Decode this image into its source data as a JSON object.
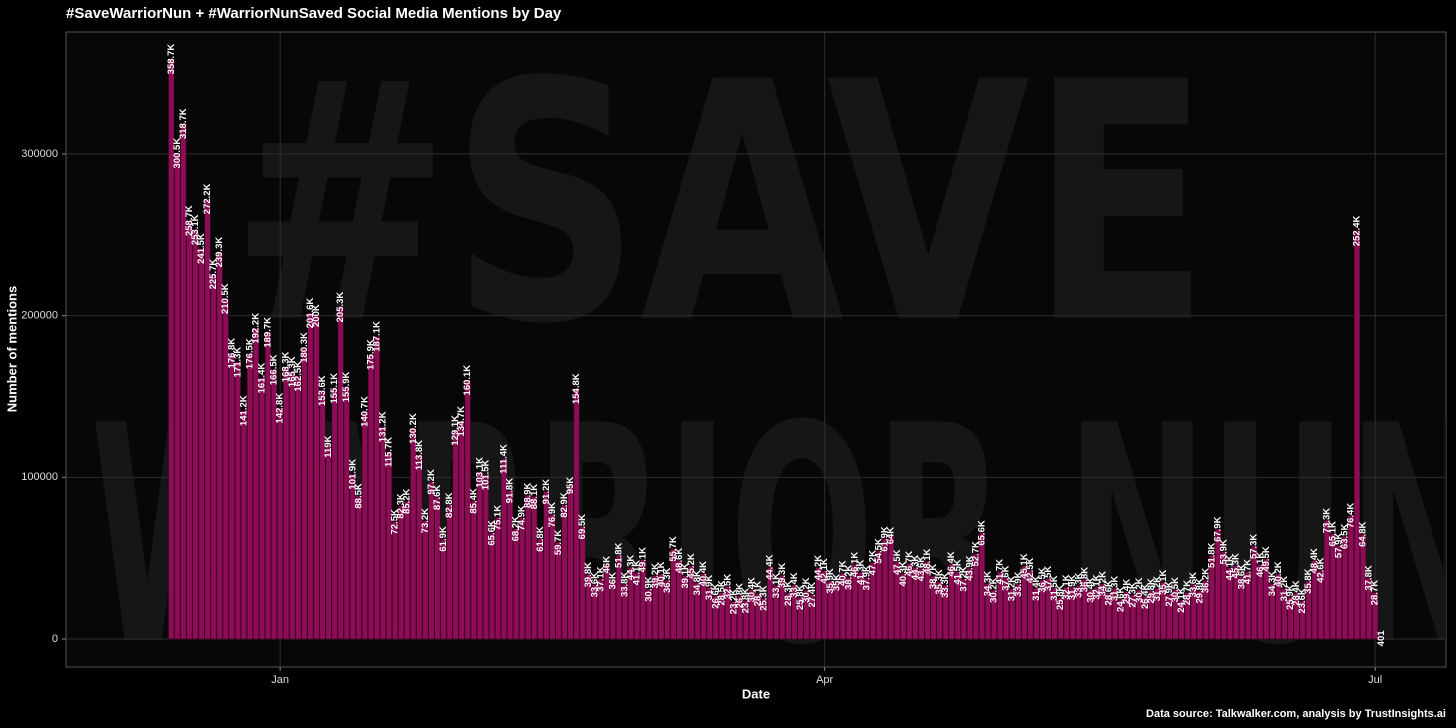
{
  "chart_data": {
    "type": "bar",
    "title": "#SaveWarriorNun + #WarriorNunSaved Social Media Mentions by Day",
    "x_label": "Date",
    "y_label": "Number of mentions",
    "source": "Data source: Talkwalker.com, analysis by TrustInsights.ai",
    "background_text": [
      "#SAVE",
      "WARRIOR NUN"
    ],
    "color": "#8c0d55",
    "grid": true,
    "xlim": [
      -35.4,
      192.7
    ],
    "ylim": [
      -17300,
      375400
    ],
    "xticks": [
      {
        "value": 0,
        "label": "Jan"
      },
      {
        "value": 90,
        "label": "Apr"
      },
      {
        "value": 181,
        "label": "Jul"
      }
    ],
    "yticks": [
      0,
      100000,
      200000,
      300000
    ],
    "x": [
      -18,
      -17,
      -16,
      -15,
      -14,
      -13,
      -12,
      -11,
      -10,
      -9,
      -8,
      -7,
      -6,
      -5,
      -4,
      -3,
      -2,
      -1,
      0,
      1,
      2,
      3,
      4,
      5,
      6,
      7,
      8,
      9,
      10,
      11,
      12,
      13,
      14,
      15,
      16,
      17,
      18,
      19,
      20,
      21,
      22,
      23,
      24,
      25,
      26,
      27,
      28,
      29,
      30,
      31,
      32,
      33,
      34,
      35,
      36,
      37,
      38,
      39,
      40,
      41,
      42,
      43,
      44,
      45,
      46,
      47,
      48,
      49,
      50,
      51,
      52,
      53,
      54,
      55,
      56,
      57,
      58,
      59,
      60,
      61,
      62,
      63,
      64,
      65,
      66,
      67,
      68,
      69,
      70,
      71,
      72,
      73,
      74,
      75,
      76,
      77,
      78,
      79,
      80,
      81,
      82,
      83,
      84,
      85,
      86,
      87,
      88,
      89,
      90,
      91,
      92,
      93,
      94,
      95,
      96,
      97,
      98,
      99,
      100,
      101,
      102,
      103,
      104,
      105,
      106,
      107,
      108,
      109,
      110,
      111,
      112,
      113,
      114,
      115,
      116,
      117,
      118,
      119,
      120,
      121,
      122,
      123,
      124,
      125,
      126,
      127,
      128,
      129,
      130,
      131,
      132,
      133,
      134,
      135,
      136,
      137,
      138,
      139,
      140,
      141,
      142,
      143,
      144,
      145,
      146,
      147,
      148,
      149,
      150,
      151,
      152,
      153,
      154,
      155,
      156,
      157,
      158,
      159,
      160,
      161,
      162,
      163,
      164,
      165,
      166,
      167,
      168,
      169,
      170,
      171,
      172,
      173,
      174,
      175,
      176,
      177,
      178,
      179,
      180,
      181,
      182
    ],
    "values": [
      358700,
      300500,
      318700,
      258700,
      253100,
      241500,
      272200,
      225700,
      239300,
      210500,
      176800,
      171300,
      141200,
      176500,
      192200,
      161400,
      189700,
      166500,
      142800,
      168300,
      165300,
      162500,
      180300,
      201600,
      200000,
      153600,
      119000,
      155100,
      205300,
      155900,
      101900,
      88500,
      140700,
      175900,
      187100,
      131200,
      115700,
      72500,
      82300,
      85200,
      130200,
      113800,
      73200,
      97200,
      87600,
      61900,
      82800,
      129100,
      134700,
      160100,
      85400,
      103100,
      101500,
      65600,
      75100,
      111400,
      91800,
      68200,
      74900,
      88900,
      88100,
      61800,
      91200,
      76900,
      59700,
      82900,
      95000,
      154800,
      69500,
      39800,
      33600,
      37100,
      46000,
      36000,
      51800,
      33800,
      44300,
      41100,
      49100,
      30900,
      39200,
      40100,
      36300,
      55700,
      48600,
      39100,
      45200,
      34800,
      40400,
      31900,
      26600,
      28500,
      32500,
      23200,
      26800,
      23800,
      30400,
      28100,
      25300,
      44400,
      33100,
      39300,
      28300,
      33400,
      25800,
      30200,
      27400,
      44200,
      42100,
      35900,
      35000,
      40700,
      38200,
      46100,
      41300,
      37900,
      47200,
      54500,
      61900,
      64000,
      47500,
      40300,
      46700,
      44300,
      43600,
      48100,
      38700,
      35300,
      33300,
      46400,
      41500,
      37200,
      43900,
      52700,
      65600,
      34300,
      30200,
      41700,
      37600,
      31200,
      33900,
      45100,
      42500,
      31400,
      36500,
      37500,
      31500,
      25800,
      32100,
      31900,
      33300,
      36800,
      30400,
      32100,
      34200,
      28600,
      31300,
      24600,
      29400,
      27300,
      30200,
      26400,
      29800,
      31200,
      35100,
      27900,
      30500,
      24100,
      28700,
      33600,
      29800,
      36200,
      51800,
      67900,
      53900,
      44100,
      45300,
      38600,
      41700,
      57300,
      46100,
      49500,
      34300,
      40200,
      31200,
      25900,
      28400,
      23600,
      35800,
      48400,
      42600,
      73300,
      65100,
      57900,
      63500,
      76400,
      252400,
      64800,
      37800,
      28700,
      401
    ],
    "value_labels": [
      "358.7K",
      "300.5K",
      "318.7K",
      "258.7K",
      "253.1K",
      "241.5K",
      "272.2K",
      "225.7K",
      "239.3K",
      "210.5K",
      "176.8K",
      "171.3K",
      "141.2K",
      "176.5K",
      "192.2K",
      "161.4K",
      "189.7K",
      "166.5K",
      "142.8K",
      "168.3K",
      "165.3K",
      "162.5K",
      "180.3K",
      "201.6K",
      "200K",
      "153.6K",
      "119K",
      "155.1K",
      "205.3K",
      "155.9K",
      "101.9K",
      "88.5K",
      "140.7K",
      "175.9K",
      "187.1K",
      "131.2K",
      "115.7K",
      "72.5K",
      "82.3K",
      "85.2K",
      "130.2K",
      "113.8K",
      "73.2K",
      "97.2K",
      "87.6K",
      "61.9K",
      "82.8K",
      "129.1K",
      "134.7K",
      "160.1K",
      "85.4K",
      "103.1K",
      "101.5K",
      "65.6K",
      "75.1K",
      "111.4K",
      "91.8K",
      "68.2K",
      "74.9K",
      "88.9K",
      "88.1K",
      "61.8K",
      "91.2K",
      "76.9K",
      "59.7K",
      "82.9K",
      "95K",
      "154.8K",
      "69.5K",
      "39.8K",
      "33.6K",
      "37.1K",
      "46K",
      "36K",
      "51.8K",
      "33.8K",
      "44.3K",
      "41.1K",
      "49.1K",
      "30.9K",
      "39.2K",
      "40.1K",
      "36.3K",
      "55.7K",
      "48.6K",
      "39.1K",
      "45.2K",
      "34.8K",
      "40.4K",
      "31.9K",
      "26.6K",
      "28.5K",
      "32.5K",
      "23.2K",
      "26.8K",
      "23.8K",
      "30.4K",
      "28.1K",
      "25.3K",
      "44.4K",
      "33.1K",
      "39.3K",
      "28.3K",
      "33.4K",
      "25.8K",
      "30.2K",
      "27.4K",
      "44.2K",
      "42.1K",
      "35.9K",
      "35K",
      "40.7K",
      "38.2K",
      "46.1K",
      "41.3K",
      "37.9K",
      "47.2K",
      "54.5K",
      "61.9K",
      "64K",
      "47.5K",
      "40.3K",
      "46.7K",
      "44.3K",
      "43.6K",
      "48.1K",
      "38.7K",
      "35.3K",
      "33.3K",
      "46.4K",
      "41.5K",
      "37.2K",
      "43.9K",
      "52.7K",
      "65.6K",
      "34.3K",
      "30.2K",
      "41.7K",
      "37.6K",
      "31.2K",
      "33.9K",
      "45.1K",
      "42.5K",
      "31.4K",
      "36.5K",
      "37.5K",
      "31.5K",
      "25.8K",
      "32.1K",
      "31.9K",
      "33.3K",
      "36.8K",
      "30.4K",
      "32.1K",
      "34.2K",
      "28.6K",
      "31.3K",
      "24.6K",
      "29.4K",
      "27.3K",
      "30.2K",
      "26.4K",
      "29.8K",
      "31.2K",
      "35.1K",
      "27.9K",
      "30.5K",
      "24.1K",
      "28.7K",
      "33.6K",
      "29.8K",
      "36.2K",
      "51.8K",
      "67.9K",
      "53.9K",
      "44.1K",
      "45.3K",
      "38.6K",
      "41.7K",
      "57.3K",
      "46.1K",
      "49.5K",
      "34.3K",
      "40.2K",
      "31.2K",
      "25.9K",
      "28.4K",
      "23.6K",
      "35.8K",
      "48.4K",
      "42.6K",
      "73.3K",
      "65.1K",
      "57.9K",
      "63.5K",
      "76.4K",
      "252.4K",
      "64.8K",
      "37.8K",
      "28.7K",
      "401"
    ]
  }
}
